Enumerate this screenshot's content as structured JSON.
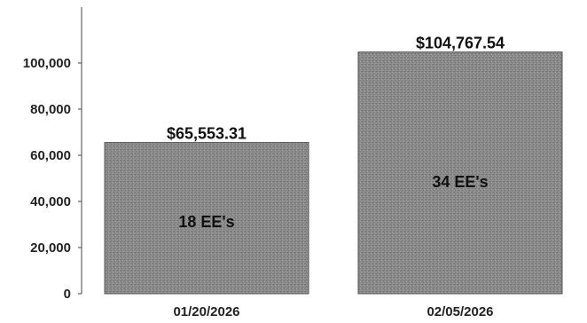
{
  "chart_data": {
    "type": "bar",
    "categories": [
      "01/20/2026",
      "02/05/2026"
    ],
    "values": [
      65553.31,
      104767.54
    ],
    "value_labels": [
      "$65,553.31",
      "$104,767.54"
    ],
    "inner_labels": [
      "18 EE's",
      "34 EE's"
    ],
    "y_ticks": [
      0,
      20000,
      40000,
      60000,
      80000,
      100000
    ],
    "y_tick_labels": [
      "0",
      "20,000",
      "40,000",
      "60,000",
      "80,000",
      "100,000"
    ],
    "ylim": [
      0,
      114000
    ],
    "grid": false,
    "colors": {
      "bar_fill": "#8a8a8a",
      "bar_stroke": "#555555",
      "axis": "#444444"
    }
  }
}
